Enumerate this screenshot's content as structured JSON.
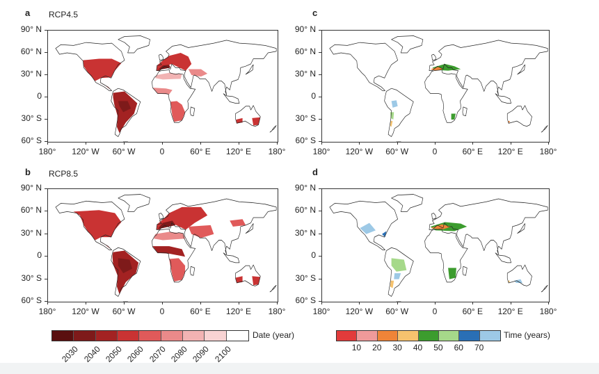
{
  "panels": [
    {
      "letter": "a",
      "scenario": "RCP4.5"
    },
    {
      "letter": "c",
      "scenario": ""
    },
    {
      "letter": "b",
      "scenario": "RCP8.5"
    },
    {
      "letter": "d",
      "scenario": ""
    }
  ],
  "axes": {
    "lat_labels": [
      "90° N",
      "60° N",
      "30° N",
      "0",
      "30° S",
      "60° S"
    ],
    "lon_labels": [
      "180°",
      "120° W",
      "60° W",
      "0",
      "60° E",
      "120° E",
      "180°"
    ]
  },
  "legend_date": {
    "title": "Date (year)",
    "labels": [
      "2030",
      "2040",
      "2050",
      "2060",
      "2070",
      "2080",
      "2090",
      "2100"
    ],
    "colors": [
      "#5a0f0f",
      "#7e1a1a",
      "#a32222",
      "#c93333",
      "#e05a5a",
      "#ea8a8a",
      "#f2b3b3",
      "#f8d3d3",
      "#ffffff"
    ]
  },
  "legend_time": {
    "title": "Time (years)",
    "labels": [
      "10",
      "20",
      "30",
      "40",
      "50",
      "60",
      "70"
    ],
    "colors": [
      "#e23b3b",
      "#ef9a9a",
      "#ef8438",
      "#f6c26e",
      "#3c9c2e",
      "#a6d98a",
      "#2a6fb5",
      "#9dc9e6"
    ]
  }
}
